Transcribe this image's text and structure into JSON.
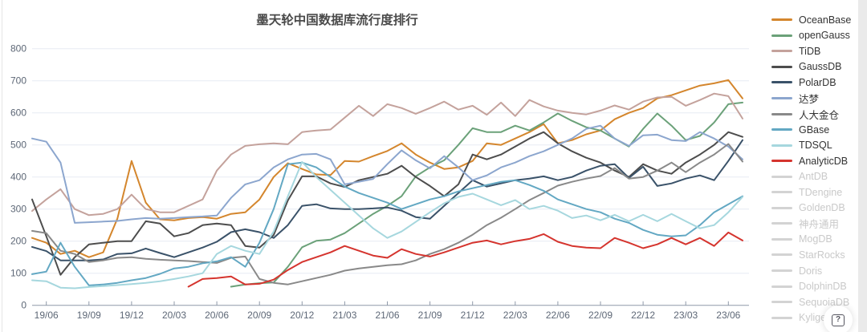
{
  "title": "墨天轮中国数据库流行度排行",
  "help_button": {
    "glyph": "?"
  },
  "colors": {
    "title": "#4a4a4a",
    "grid_line": "#e7ebf3",
    "axis_line": "#8f99a9",
    "axis_label": "#5d6776",
    "inactive_legend": "#d3d3d3",
    "right_strip": "#eaeaea"
  },
  "chart_data": {
    "type": "line",
    "title": "墨天轮中国数据库流行度排行",
    "legend_position": "right",
    "grid": true,
    "x_axis": {
      "start_month": "19/05",
      "end_month": "23/07",
      "tick_labels": [
        "19/06",
        "19/09",
        "19/12",
        "20/03",
        "20/06",
        "20/09",
        "20/12",
        "21/03",
        "21/06",
        "21/09",
        "21/12",
        "22/03",
        "22/06",
        "22/09",
        "22/12",
        "23/03",
        "23/06"
      ],
      "tick_month_indices": [
        1,
        4,
        7,
        10,
        13,
        16,
        19,
        22,
        25,
        28,
        31,
        34,
        37,
        40,
        43,
        46,
        49
      ]
    },
    "y_axis": {
      "min": 0,
      "max": 800,
      "ticks": [
        0,
        100,
        200,
        300,
        400,
        500,
        600,
        700,
        800
      ]
    },
    "series": [
      {
        "name": "OceanBase",
        "color": "#d4862d",
        "values": [
          210,
          195,
          160,
          170,
          150,
          165,
          270,
          450,
          320,
          268,
          265,
          272,
          275,
          270,
          285,
          290,
          330,
          400,
          443,
          425,
          408,
          406,
          450,
          448,
          465,
          481,
          505,
          470,
          445,
          425,
          430,
          450,
          505,
          500,
          520,
          540,
          565,
          505,
          515,
          533,
          545,
          580,
          600,
          615,
          645,
          655,
          670,
          685,
          692,
          702,
          645
        ]
      },
      {
        "name": "openGauss",
        "color": "#6ba179",
        "values": [
          null,
          null,
          null,
          null,
          null,
          null,
          null,
          null,
          null,
          null,
          null,
          null,
          null,
          null,
          58,
          65,
          69,
          71,
          120,
          181,
          201,
          205,
          225,
          255,
          285,
          310,
          340,
          402,
          430,
          452,
          500,
          552,
          540,
          540,
          560,
          545,
          570,
          598,
          575,
          555,
          545,
          520,
          495,
          550,
          598,
          560,
          515,
          528,
          570,
          627,
          632
        ]
      },
      {
        "name": "TiDB",
        "color": "#c4a29c",
        "values": [
          294,
          330,
          362,
          300,
          281,
          285,
          300,
          345,
          300,
          290,
          290,
          310,
          330,
          420,
          470,
          497,
          502,
          505,
          502,
          540,
          545,
          548,
          585,
          622,
          590,
          627,
          615,
          597,
          615,
          635,
          610,
          622,
          594,
          632,
          590,
          640,
          620,
          607,
          600,
          595,
          607,
          623,
          610,
          635,
          648,
          650,
          622,
          640,
          660,
          652,
          582
        ]
      },
      {
        "name": "GaussDB",
        "color": "#4d4d4d",
        "values": [
          330,
          215,
          95,
          150,
          190,
          195,
          200,
          200,
          262,
          255,
          215,
          225,
          250,
          255,
          250,
          185,
          180,
          219,
          327,
          402,
          402,
          380,
          369,
          390,
          400,
          410,
          435,
          400,
          372,
          340,
          377,
          470,
          455,
          470,
          495,
          520,
          540,
          505,
          480,
          460,
          445,
          420,
          400,
          440,
          420,
          410,
          445,
          470,
          500,
          540,
          525
        ]
      },
      {
        "name": "PolarDB",
        "color": "#3a5269",
        "values": [
          182,
          169,
          140,
          140,
          140,
          143,
          160,
          162,
          177,
          163,
          150,
          165,
          180,
          198,
          228,
          237,
          228,
          210,
          250,
          310,
          315,
          302,
          300,
          300,
          302,
          305,
          295,
          275,
          270,
          310,
          350,
          390,
          370,
          380,
          390,
          395,
          402,
          390,
          400,
          420,
          435,
          440,
          397,
          432,
          372,
          380,
          395,
          405,
          390,
          450,
          515
        ]
      },
      {
        "name": "达梦",
        "color": "#8ca6ce",
        "values": [
          520,
          510,
          445,
          257,
          259,
          261,
          263,
          268,
          272,
          270,
          272,
          275,
          277,
          280,
          335,
          377,
          390,
          430,
          455,
          470,
          472,
          455,
          377,
          385,
          394,
          440,
          483,
          452,
          427,
          465,
          430,
          390,
          405,
          430,
          445,
          465,
          480,
          500,
          520,
          550,
          560,
          520,
          497,
          530,
          532,
          515,
          512,
          540,
          520,
          495,
          455
        ]
      },
      {
        "name": "人大金仓",
        "color": "#898989",
        "values": [
          232,
          225,
          170,
          160,
          135,
          140,
          148,
          150,
          145,
          142,
          140,
          138,
          135,
          132,
          148,
          152,
          82,
          70,
          65,
          75,
          85,
          95,
          108,
          115,
          120,
          125,
          128,
          140,
          160,
          175,
          195,
          220,
          250,
          273,
          300,
          328,
          350,
          373,
          385,
          395,
          403,
          428,
          395,
          400,
          420,
          445,
          415,
          445,
          470,
          503,
          448
        ]
      },
      {
        "name": "GBase",
        "color": "#63a8c3",
        "values": [
          97,
          105,
          195,
          120,
          62,
          65,
          70,
          78,
          85,
          98,
          115,
          120,
          131,
          137,
          150,
          120,
          195,
          300,
          440,
          445,
          430,
          400,
          370,
          350,
          335,
          320,
          300,
          315,
          330,
          340,
          355,
          365,
          375,
          385,
          390,
          375,
          357,
          330,
          315,
          300,
          290,
          270,
          257,
          235,
          220,
          215,
          218,
          250,
          290,
          315,
          340
        ]
      },
      {
        "name": "TDSQL",
        "color": "#a6d7de",
        "values": [
          78,
          75,
          55,
          53,
          57,
          60,
          63,
          66,
          70,
          75,
          82,
          90,
          100,
          160,
          185,
          170,
          160,
          230,
          340,
          447,
          400,
          360,
          320,
          280,
          240,
          210,
          230,
          260,
          290,
          318,
          338,
          348,
          330,
          312,
          328,
          300,
          310,
          295,
          272,
          280,
          265,
          282,
          262,
          282,
          262,
          285,
          262,
          240,
          250,
          290,
          338
        ]
      },
      {
        "name": "AnalyticDB",
        "color": "#d5342e",
        "values": [
          null,
          null,
          null,
          null,
          null,
          null,
          null,
          null,
          null,
          null,
          null,
          58,
          82,
          85,
          90,
          65,
          67,
          80,
          110,
          135,
          150,
          165,
          185,
          170,
          155,
          148,
          175,
          160,
          152,
          165,
          180,
          195,
          202,
          190,
          200,
          207,
          222,
          198,
          185,
          180,
          178,
          210,
          195,
          178,
          190,
          210,
          190,
          210,
          185,
          227,
          202
        ]
      }
    ],
    "legend": [
      {
        "label": "OceanBase",
        "color": "#d4862d",
        "active": true
      },
      {
        "label": "openGauss",
        "color": "#6ba179",
        "active": true
      },
      {
        "label": "TiDB",
        "color": "#c4a29c",
        "active": true
      },
      {
        "label": "GaussDB",
        "color": "#4d4d4d",
        "active": true
      },
      {
        "label": "PolarDB",
        "color": "#3a5269",
        "active": true
      },
      {
        "label": "达梦",
        "color": "#8ca6ce",
        "active": true
      },
      {
        "label": "人大金仓",
        "color": "#898989",
        "active": true
      },
      {
        "label": "GBase",
        "color": "#63a8c3",
        "active": true
      },
      {
        "label": "TDSQL",
        "color": "#a6d7de",
        "active": true
      },
      {
        "label": "AnalyticDB",
        "color": "#d5342e",
        "active": true
      },
      {
        "label": "AntDB",
        "color": "#d3d3d3",
        "active": false
      },
      {
        "label": "TDengine",
        "color": "#d3d3d3",
        "active": false
      },
      {
        "label": "GoldenDB",
        "color": "#d3d3d3",
        "active": false
      },
      {
        "label": "神舟通用",
        "color": "#d3d3d3",
        "active": false
      },
      {
        "label": "MogDB",
        "color": "#d3d3d3",
        "active": false
      },
      {
        "label": "StarRocks",
        "color": "#d3d3d3",
        "active": false
      },
      {
        "label": "Doris",
        "color": "#d3d3d3",
        "active": false
      },
      {
        "label": "DolphinDB",
        "color": "#d3d3d3",
        "active": false
      },
      {
        "label": "SequoiaDB",
        "color": "#d3d3d3",
        "active": false
      },
      {
        "label": "Kyligence",
        "color": "#d3d3d3",
        "active": false
      }
    ]
  }
}
